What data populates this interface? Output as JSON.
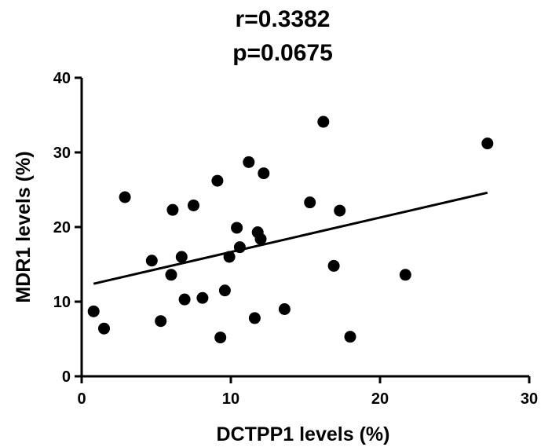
{
  "chart_data": {
    "type": "scatter",
    "title_lines": [
      "r=0.3382",
      "p=0.0675"
    ],
    "xlabel": "DCTPP1 levels (%)",
    "ylabel": "MDR1 levels (%)",
    "xlim": [
      0,
      30
    ],
    "ylim": [
      0,
      40
    ],
    "x_ticks": [
      0,
      10,
      20,
      30
    ],
    "y_ticks": [
      0,
      10,
      20,
      30,
      40
    ],
    "grid": false,
    "legend": "none",
    "marker_color": "#000000",
    "points": [
      {
        "x": 0.8,
        "y": 8.7
      },
      {
        "x": 1.5,
        "y": 6.4
      },
      {
        "x": 2.9,
        "y": 24.0
      },
      {
        "x": 4.7,
        "y": 15.5
      },
      {
        "x": 5.3,
        "y": 7.4
      },
      {
        "x": 6.0,
        "y": 13.6
      },
      {
        "x": 6.1,
        "y": 22.3
      },
      {
        "x": 6.7,
        "y": 16.0
      },
      {
        "x": 6.9,
        "y": 10.3
      },
      {
        "x": 7.5,
        "y": 22.9
      },
      {
        "x": 8.1,
        "y": 10.5
      },
      {
        "x": 9.1,
        "y": 26.2
      },
      {
        "x": 9.3,
        "y": 5.2
      },
      {
        "x": 9.6,
        "y": 11.5
      },
      {
        "x": 9.9,
        "y": 16.0
      },
      {
        "x": 10.4,
        "y": 19.9
      },
      {
        "x": 10.6,
        "y": 17.3
      },
      {
        "x": 11.2,
        "y": 28.7
      },
      {
        "x": 11.6,
        "y": 7.8
      },
      {
        "x": 11.8,
        "y": 19.3
      },
      {
        "x": 12.0,
        "y": 18.4
      },
      {
        "x": 12.2,
        "y": 27.2
      },
      {
        "x": 13.6,
        "y": 9.0
      },
      {
        "x": 15.3,
        "y": 23.3
      },
      {
        "x": 16.2,
        "y": 34.1
      },
      {
        "x": 16.9,
        "y": 14.8
      },
      {
        "x": 17.3,
        "y": 22.2
      },
      {
        "x": 18.0,
        "y": 5.3
      },
      {
        "x": 21.7,
        "y": 13.6
      },
      {
        "x": 27.2,
        "y": 31.2
      }
    ],
    "regression_line": {
      "x": [
        0.8,
        27.2
      ],
      "y": [
        12.4,
        24.6
      ]
    }
  }
}
